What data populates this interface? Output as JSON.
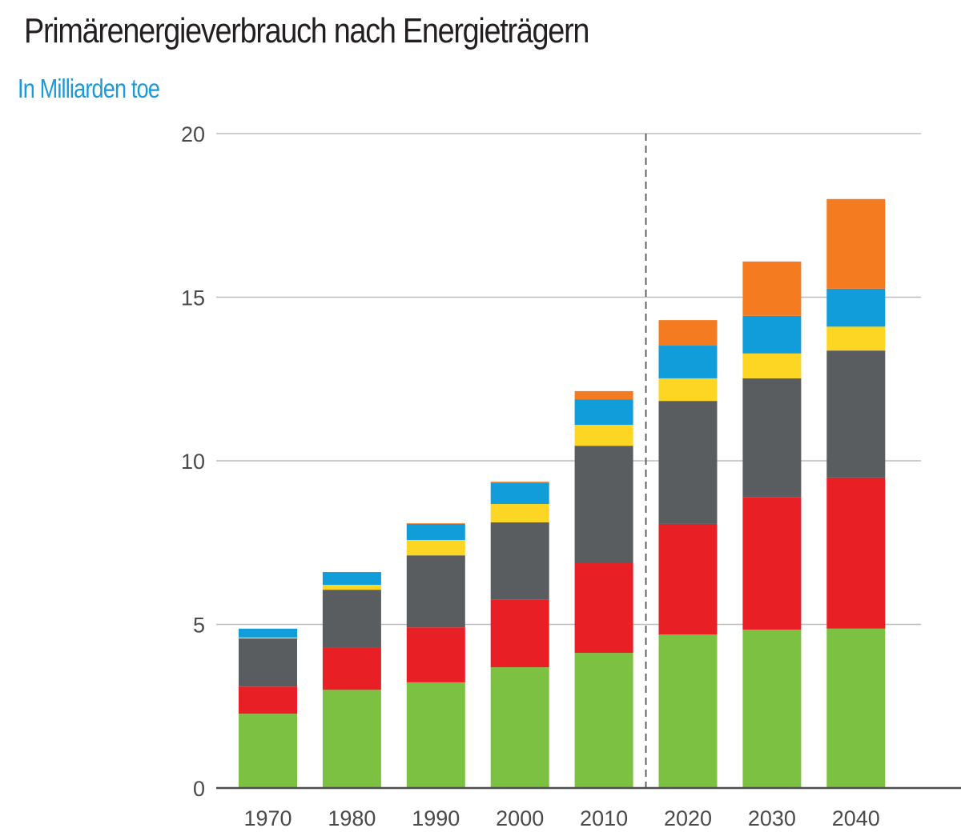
{
  "header": {
    "title": "Primärenergieverbrauch nach Energieträgern",
    "subtitle": "In Milliarden toe"
  },
  "chart_data": {
    "type": "bar",
    "stacked": true,
    "title": "Primärenergieverbrauch nach Energieträgern",
    "subtitle": "In Milliarden toe",
    "xlabel": "",
    "ylabel": "In Milliarden toe",
    "ylim": [
      0,
      20
    ],
    "yticks": [
      0,
      5,
      10,
      15,
      20
    ],
    "grid": true,
    "legend": "none",
    "categories": [
      "1970",
      "1980",
      "1990",
      "2000",
      "2010",
      "2020",
      "2030",
      "2040"
    ],
    "projection_divider_between": [
      "2010",
      "2020"
    ],
    "series": [
      {
        "name": "green",
        "color": "#7dc142",
        "values": [
          2.27,
          3.0,
          3.23,
          3.69,
          4.13,
          4.69,
          4.84,
          4.87
        ]
      },
      {
        "name": "red",
        "color": "#e91f26",
        "values": [
          0.83,
          1.28,
          1.68,
          2.06,
          2.74,
          3.38,
          4.04,
          4.62
        ]
      },
      {
        "name": "dark-gray",
        "color": "#5a5d5f",
        "values": [
          1.47,
          1.78,
          2.2,
          2.37,
          3.59,
          3.76,
          3.64,
          3.88
        ]
      },
      {
        "name": "yellow",
        "color": "#fdd623",
        "values": [
          0.03,
          0.15,
          0.47,
          0.56,
          0.64,
          0.69,
          0.76,
          0.73
        ]
      },
      {
        "name": "blue",
        "color": "#119dd9",
        "values": [
          0.27,
          0.39,
          0.49,
          0.65,
          0.78,
          1.0,
          1.15,
          1.16
        ]
      },
      {
        "name": "orange",
        "color": "#f47b20",
        "values": [
          0.0,
          0.0,
          0.02,
          0.03,
          0.25,
          0.78,
          1.66,
          2.74
        ]
      }
    ]
  }
}
